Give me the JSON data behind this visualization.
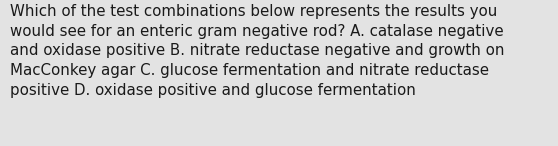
{
  "lines": [
    "Which of the test combinations below represents the results you",
    "would see for an enteric gram negative rod? A. catalase negative",
    "and oxidase positive B. nitrate reductase negative and growth on",
    "MacConkey agar C. glucose fermentation and nitrate reductase",
    "positive D. oxidase positive and glucose fermentation"
  ],
  "background_color": "#e3e3e3",
  "text_color": "#1a1a1a",
  "font_size": 10.8,
  "fig_width": 5.58,
  "fig_height": 1.46,
  "dpi": 100
}
